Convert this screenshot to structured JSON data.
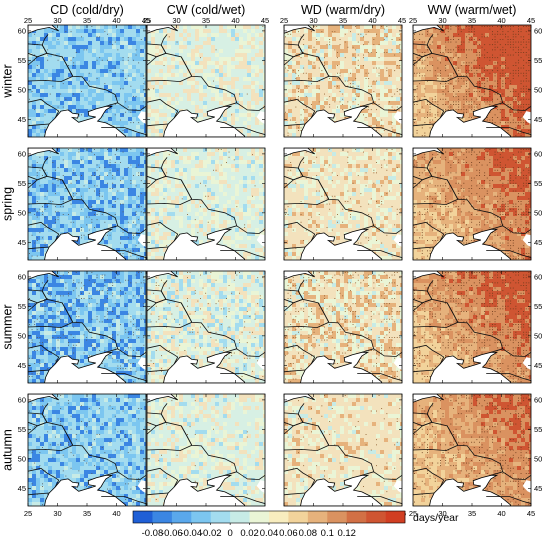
{
  "figure": {
    "column_titles": [
      "CD (cold/dry)",
      "CW (cold/wet)",
      "WD (warm/dry)",
      "WW (warm/wet)"
    ],
    "row_labels": [
      "winter",
      "spring",
      "summer",
      "autumn"
    ],
    "x_tick_labels": [
      "25",
      "30",
      "35",
      "40",
      "45"
    ],
    "y_tick_labels": [
      "60",
      "55",
      "50",
      "45"
    ],
    "colorbar": {
      "tick_labels": [
        "-0.08",
        "-0.06",
        "-0.04",
        "-0.02",
        "0",
        "0.02",
        "0.04",
        "0.06",
        "0.08",
        "0.1",
        "0.12"
      ],
      "unit": "days/year",
      "colors": [
        "#1f5fd6",
        "#3b86e3",
        "#5aa8ec",
        "#7cc6f0",
        "#a3dcef",
        "#c7ebe6",
        "#eaf5d6",
        "#f8edbf",
        "#f2d39b",
        "#e6b27c",
        "#da9260",
        "#d27045",
        "#cf5532",
        "#d13e22"
      ]
    },
    "panel_palettes": {
      "CD": {
        "base": "#a3dcef",
        "alt": "#7cc6f0",
        "accent": "#3b86e3",
        "stipple": "#555555"
      },
      "CW": {
        "base": "#d7f0e4",
        "alt": "#eaf5d6",
        "accent": "#a3dcef",
        "stipple": "#8a5a2b"
      },
      "WD": {
        "base": "#f3e2bd",
        "alt": "#eaf5d6",
        "accent": "#e6b27c",
        "stipple": "#8a5a2b"
      },
      "WW": {
        "base": "#e6b27c",
        "alt": "#f2d39b",
        "accent": "#cf5532",
        "stipple": "#6b3a1b"
      }
    }
  }
}
